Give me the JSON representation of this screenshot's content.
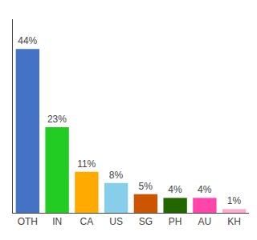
{
  "chart_data": {
    "type": "bar",
    "categories": [
      "OTH",
      "IN",
      "CA",
      "US",
      "SG",
      "PH",
      "AU",
      "KH"
    ],
    "values": [
      44,
      23,
      11,
      8,
      5,
      4,
      4,
      1
    ],
    "value_labels": [
      "44%",
      "23%",
      "11%",
      "8%",
      "5%",
      "4%",
      "4%",
      "1%"
    ],
    "colors": [
      "#4472c4",
      "#22cc22",
      "#ffaa00",
      "#87ceeb",
      "#cc5500",
      "#226600",
      "#ff44aa",
      "#ffaacc"
    ],
    "ylim": [
      0,
      52
    ],
    "data_labels": true,
    "tick_labels": "x",
    "grid": false
  }
}
